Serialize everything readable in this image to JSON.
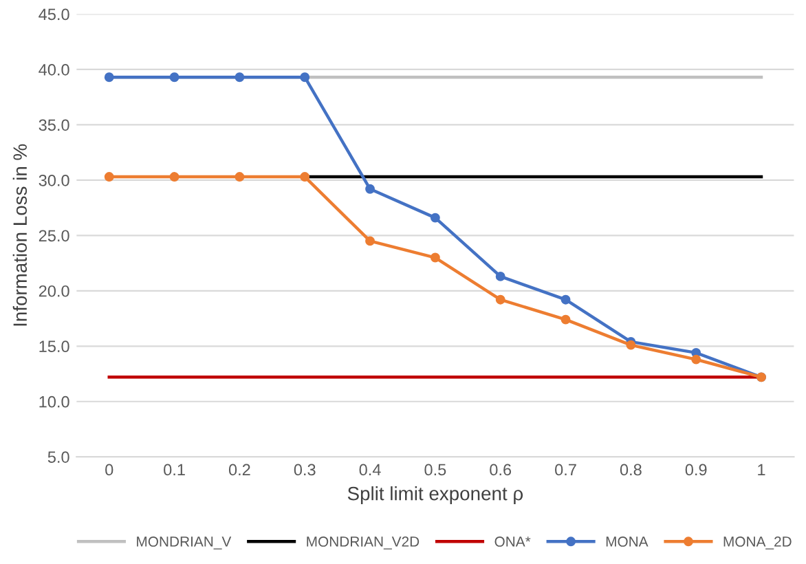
{
  "chart_data": {
    "type": "line",
    "xlabel": "Split limit exponent ρ",
    "ylabel": "Information Loss in %",
    "categories": [
      "0",
      "0.1",
      "0.2",
      "0.3",
      "0.4",
      "0.5",
      "0.6",
      "0.7",
      "0.8",
      "0.9",
      "1"
    ],
    "ylim": [
      5,
      45
    ],
    "yticks": [
      {
        "value": 5,
        "label": "5.0"
      },
      {
        "value": 10,
        "label": "10.0"
      },
      {
        "value": 15,
        "label": "15.0"
      },
      {
        "value": 20,
        "label": "20.0"
      },
      {
        "value": 25,
        "label": "25.0"
      },
      {
        "value": 30,
        "label": "30.0"
      },
      {
        "value": 35,
        "label": "35.0"
      },
      {
        "value": 40,
        "label": "40.0"
      },
      {
        "value": 45,
        "label": "45.0"
      }
    ],
    "grid": "y",
    "legend": "bottom",
    "series": [
      {
        "name": "MONDRIAN_V",
        "color": "#c0c0c0",
        "marker": "none",
        "values": [
          39.3,
          39.3,
          39.3,
          39.3,
          39.3,
          39.3,
          39.3,
          39.3,
          39.3,
          39.3,
          39.3
        ]
      },
      {
        "name": "MONDRIAN_V2D",
        "color": "#000000",
        "marker": "none",
        "values": [
          null,
          null,
          null,
          30.3,
          30.3,
          30.3,
          30.3,
          30.3,
          30.3,
          30.3,
          30.3
        ]
      },
      {
        "name": "ONA*",
        "color": "#c00000",
        "marker": "none",
        "values": [
          12.2,
          12.2,
          12.2,
          12.2,
          12.2,
          12.2,
          12.2,
          12.2,
          12.2,
          12.2,
          12.2
        ]
      },
      {
        "name": "MONA",
        "color": "#4472c4",
        "marker": "circle",
        "values": [
          39.3,
          39.3,
          39.3,
          39.3,
          29.2,
          26.6,
          21.3,
          19.2,
          15.4,
          14.4,
          12.2
        ]
      },
      {
        "name": "MONA_2D",
        "color": "#ed7d31",
        "marker": "circle",
        "values": [
          30.3,
          30.3,
          30.3,
          30.3,
          24.5,
          23.0,
          19.2,
          17.4,
          15.1,
          13.8,
          12.2
        ]
      }
    ]
  }
}
